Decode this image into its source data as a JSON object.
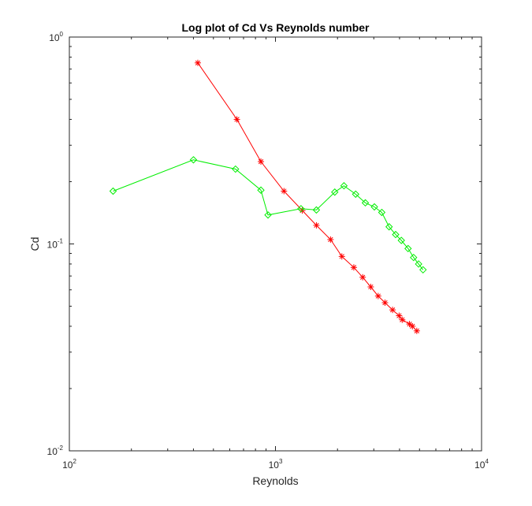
{
  "chart_data": {
    "type": "line",
    "title": "Log plot of Cd Vs Reynolds number",
    "xlabel": "Reynolds",
    "ylabel": "Cd",
    "xscale": "log",
    "yscale": "log",
    "xlim": [
      100,
      10000
    ],
    "ylim": [
      0.01,
      1
    ],
    "x_tick_labels": [
      {
        "base": "10",
        "exp": "2"
      },
      {
        "base": "10",
        "exp": "3"
      },
      {
        "base": "10",
        "exp": "4"
      }
    ],
    "y_tick_labels": [
      {
        "base": "10",
        "exp": "-2"
      },
      {
        "base": "10",
        "exp": "-1"
      },
      {
        "base": "10",
        "exp": "0"
      }
    ],
    "grid": false,
    "legend": "none",
    "series": [
      {
        "color": "#ff0000",
        "marker": "asterisk",
        "x": [
          420,
          650,
          850,
          1100,
          1350,
          1580,
          1850,
          2100,
          2400,
          2650,
          2900,
          3150,
          3400,
          3700,
          3980,
          4120,
          4470,
          4620,
          4850
        ],
        "y": [
          0.75,
          0.4,
          0.25,
          0.18,
          0.145,
          0.123,
          0.105,
          0.087,
          0.077,
          0.069,
          0.062,
          0.056,
          0.052,
          0.048,
          0.045,
          0.043,
          0.041,
          0.04,
          0.038
        ]
      },
      {
        "color": "#00ee00",
        "marker": "diamond",
        "x": [
          163,
          400,
          640,
          850,
          920,
          1330,
          1580,
          1940,
          2150,
          2450,
          2730,
          3020,
          3280,
          3560,
          3830,
          4080,
          4400,
          4680,
          4950,
          5200
        ],
        "y": [
          0.18,
          0.255,
          0.23,
          0.182,
          0.138,
          0.148,
          0.146,
          0.178,
          0.191,
          0.174,
          0.158,
          0.151,
          0.142,
          0.121,
          0.111,
          0.104,
          0.095,
          0.086,
          0.08,
          0.075
        ]
      }
    ]
  }
}
